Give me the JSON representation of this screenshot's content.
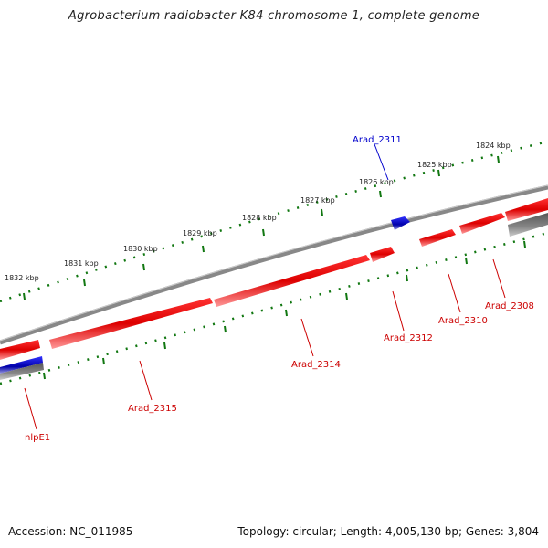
{
  "title": "Agrobacterium radiobacter K84 chromosome 1, complete genome",
  "accession_text": "Accession: NC_011985",
  "topology_text": "Topology: circular; Length: 4,005,130 bp; Genes: 3,804",
  "colors": {
    "forward_gene": "#dd0000",
    "forward_label": "#cc0000",
    "reverse_gene": "#0000cc",
    "reverse_label": "#0000cc",
    "backbone": "#888888",
    "ticks": "#117711"
  },
  "ticks": [
    {
      "label": "1824 kbp"
    },
    {
      "label": "1825 kbp"
    },
    {
      "label": "1826 kbp"
    },
    {
      "label": "1827 kbp"
    },
    {
      "label": "1828 kbp"
    },
    {
      "label": "1829 kbp"
    },
    {
      "label": "1830 kbp"
    },
    {
      "label": "1831 kbp"
    },
    {
      "label": "1832 kbp"
    }
  ],
  "genes": [
    {
      "name": "Arad_2311",
      "strand": "reverse"
    },
    {
      "name": "Arad_2308",
      "strand": "forward"
    },
    {
      "name": "Arad_2310",
      "strand": "forward"
    },
    {
      "name": "Arad_2312",
      "strand": "forward"
    },
    {
      "name": "Arad_2314",
      "strand": "forward"
    },
    {
      "name": "Arad_2315",
      "strand": "forward"
    },
    {
      "name": "nlpE1",
      "strand": "forward"
    }
  ]
}
